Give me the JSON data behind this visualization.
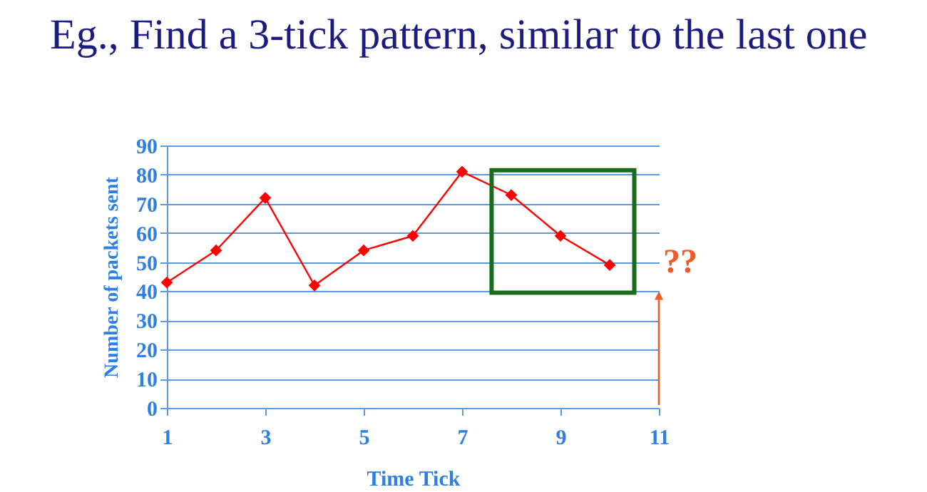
{
  "chart_data": {
    "type": "line",
    "title": "Eg., Find a 3-tick pattern, similar to the last one",
    "xlabel": "Time Tick",
    "ylabel": "Number of packets sent",
    "x": [
      1,
      2,
      3,
      4,
      5,
      6,
      7,
      8,
      9,
      10
    ],
    "series": [
      {
        "color": "#ff0000",
        "values": [
          43,
          54,
          72,
          42,
          54,
          59,
          81,
          73,
          59,
          49
        ]
      }
    ],
    "xlim": [
      1,
      11
    ],
    "xticks": [
      1,
      3,
      5,
      7,
      9,
      11
    ],
    "ylim": [
      0,
      90
    ],
    "yticks": [
      0,
      10,
      20,
      30,
      40,
      50,
      60,
      70,
      80,
      90
    ],
    "grid": "y",
    "marker": "diamond",
    "line_style": "solid",
    "annotations": [
      "??"
    ]
  }
}
